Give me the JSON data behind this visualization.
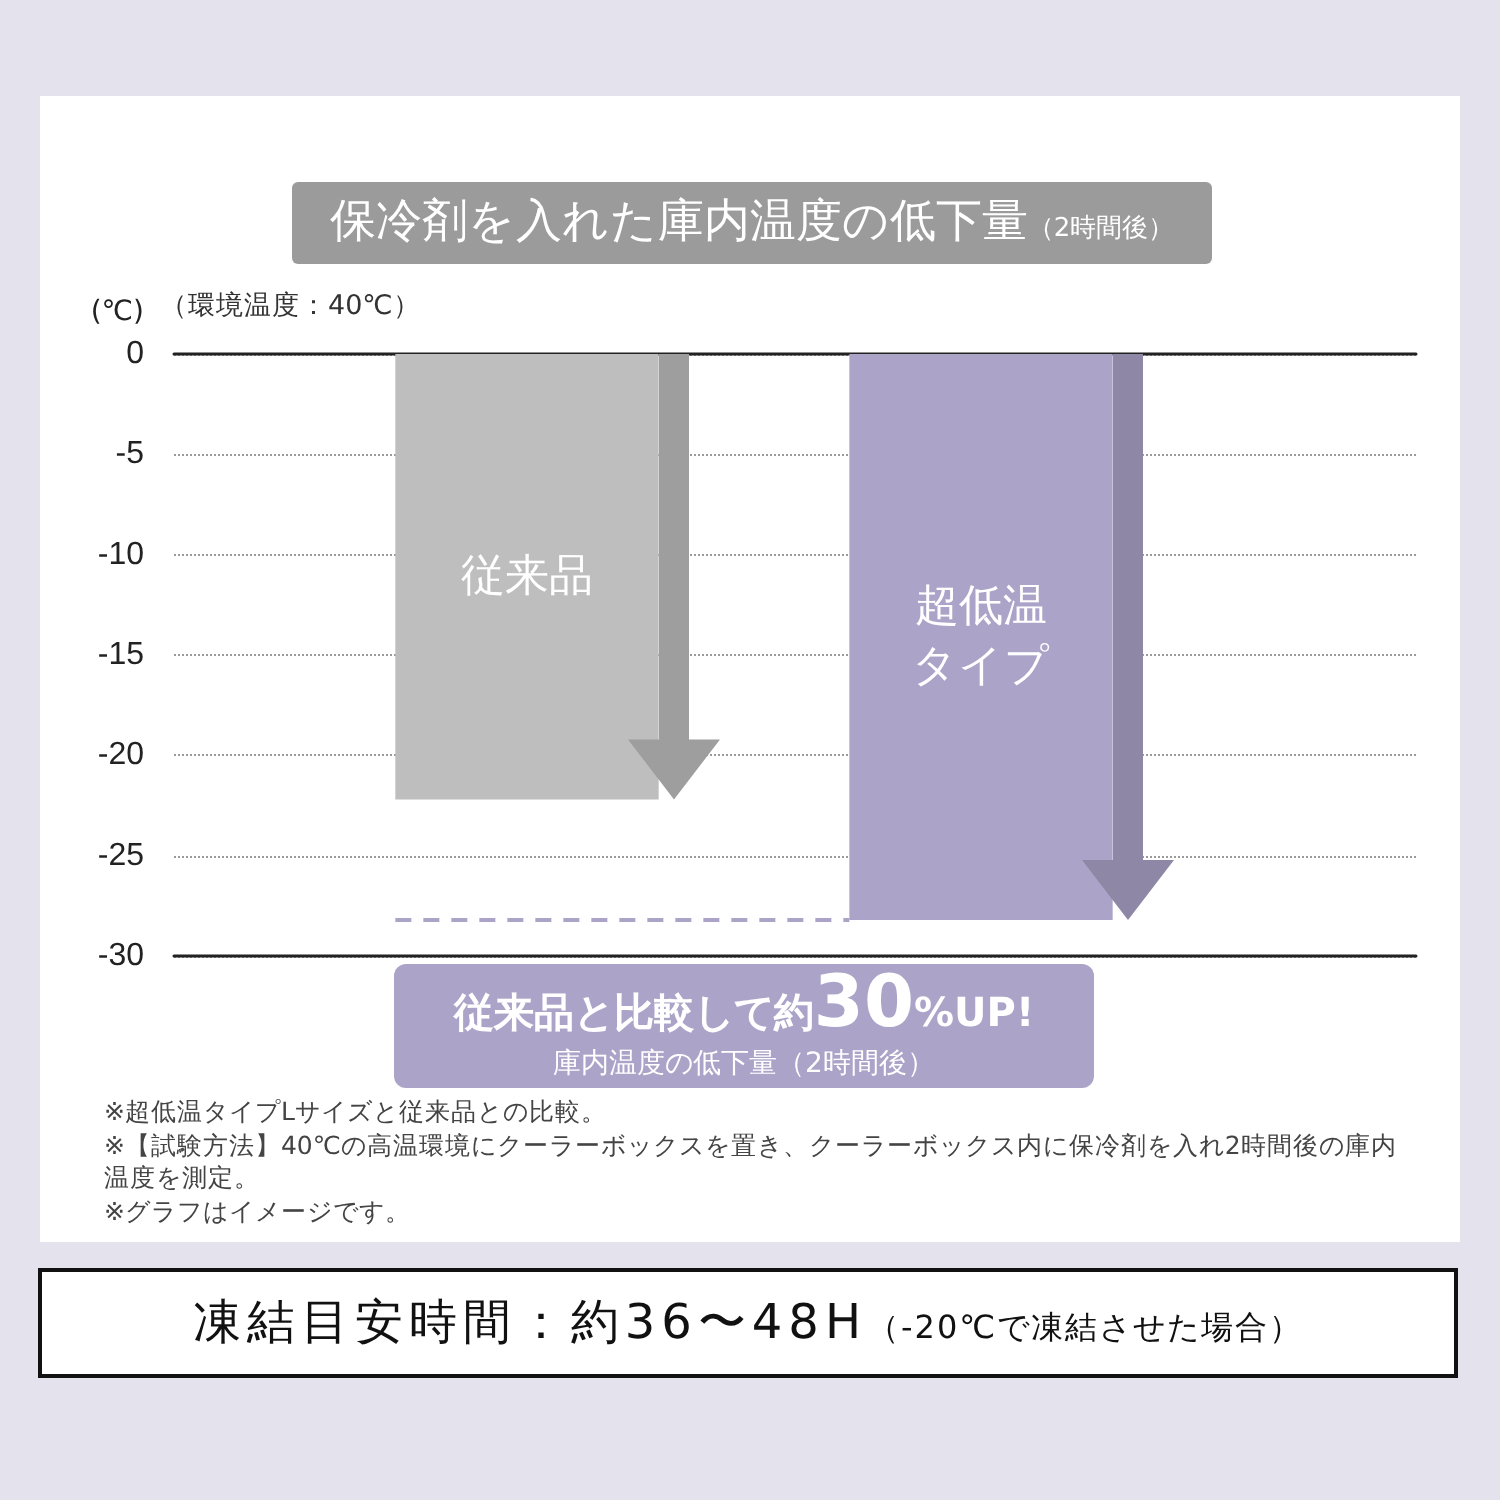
{
  "chart_data": {
    "type": "bar",
    "title": "保冷剤を入れた庫内温度の低下量（2時間後）",
    "subtitle": "（環境温度：40℃）",
    "ylabel": "(℃)",
    "categories": [
      "従来品",
      "超低温タイプ"
    ],
    "values": [
      -22.2,
      -28.2
    ],
    "colors": [
      "#bebebe",
      "#aba4c8"
    ],
    "ylim": [
      -30,
      0
    ],
    "yticks": [
      0,
      -5,
      -10,
      -15,
      -20,
      -25,
      -30
    ],
    "grid": "y",
    "tick_labels": "y",
    "ref_lines": [
      {
        "axis": "y",
        "value": -28.2,
        "color": "#aba4c8",
        "line_style": "dashed"
      }
    ],
    "annotations": [
      "従来品と比較して約30%UP!\n庫内温度の低下量（2時間後）",
      "※超低温タイプLサイズと従来品との比較。",
      "※【試験方法】40℃の高温環境にクーラーボックスを置き、クーラーボックス内に保冷剤を入れ2時間後の庫内温度を測定。",
      "※グラフはイメージです。",
      "凍結目安時間：約36〜48H（-20℃で凍結させた場合）"
    ]
  }
}
